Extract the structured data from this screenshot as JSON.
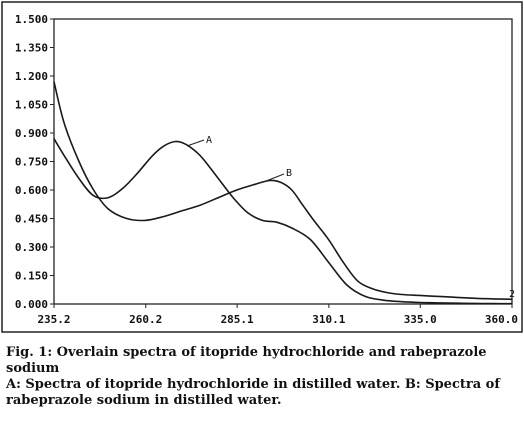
{
  "chart_data": {
    "type": "line",
    "title": "",
    "xlabel": "",
    "ylabel": "",
    "xlim": [
      235.2,
      360.0
    ],
    "ylim": [
      0.0,
      1.5
    ],
    "x_ticks": [
      "235.2",
      "260.2",
      "285.1",
      "310.1",
      "335.0",
      "360.0"
    ],
    "x_tick_values": [
      235.2,
      260.2,
      285.1,
      310.1,
      335.0,
      360.0
    ],
    "y_ticks": [
      "0.000",
      "0.150",
      "0.300",
      "0.450",
      "0.600",
      "0.750",
      "0.900",
      "1.050",
      "1.200",
      "1.350",
      "1.500"
    ],
    "y_tick_values": [
      0.0,
      0.15,
      0.3,
      0.45,
      0.6,
      0.75,
      0.9,
      1.05,
      1.2,
      1.35,
      1.5
    ],
    "grid": false,
    "series": [
      {
        "name": "A",
        "x": [
          235.2,
          238,
          242,
          246,
          250,
          254,
          258,
          262,
          265,
          268,
          270,
          272,
          274,
          276,
          280,
          284,
          288,
          292,
          296,
          300,
          305,
          310,
          315,
          320,
          325,
          330,
          335,
          340,
          345,
          350,
          355,
          360
        ],
        "y": [
          0.87,
          0.78,
          0.66,
          0.57,
          0.56,
          0.61,
          0.69,
          0.78,
          0.83,
          0.855,
          0.85,
          0.83,
          0.8,
          0.76,
          0.66,
          0.56,
          0.48,
          0.44,
          0.43,
          0.4,
          0.34,
          0.22,
          0.1,
          0.04,
          0.02,
          0.012,
          0.008,
          0.006,
          0.004,
          0.003,
          0.002,
          0.002
        ]
      },
      {
        "name": "B",
        "x": [
          235.2,
          238,
          242,
          246,
          250,
          255,
          260,
          265,
          270,
          275,
          280,
          285,
          290,
          294,
          297,
          300,
          303,
          306,
          310,
          314,
          318,
          322,
          326,
          330,
          335,
          340,
          345,
          350,
          355,
          360
        ],
        "y": [
          1.17,
          0.95,
          0.75,
          0.6,
          0.5,
          0.45,
          0.44,
          0.46,
          0.49,
          0.52,
          0.56,
          0.6,
          0.63,
          0.65,
          0.64,
          0.6,
          0.52,
          0.44,
          0.34,
          0.22,
          0.12,
          0.08,
          0.06,
          0.05,
          0.045,
          0.04,
          0.035,
          0.03,
          0.027,
          0.025
        ]
      }
    ],
    "annotations": [
      "A",
      "B",
      "2"
    ]
  },
  "caption": {
    "title": "Fig. 1: Overlain spectra of itopride hydrochloride and rabeprazole sodium",
    "body": "A: Spectra of itopride hydrochloride in distilled water. B: Spectra of rabeprazole sodium in distilled water."
  }
}
